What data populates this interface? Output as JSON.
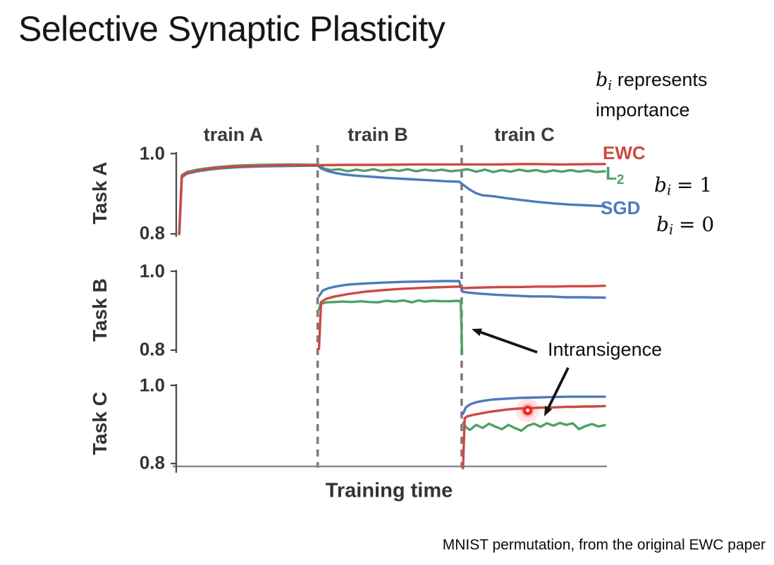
{
  "slide": {
    "title": "Selective Synaptic Plasticity",
    "caption": "MNIST permutation, from the original EWC paper"
  },
  "notes": {
    "importance": {
      "var": "b",
      "sub": "i",
      "rest": "represents",
      "line2": "importance"
    },
    "eq1": {
      "var": "b",
      "sub": "i",
      "rhs": "= 1"
    },
    "eq2": {
      "var": "b",
      "sub": "i",
      "rhs": "= 0"
    }
  },
  "chart_data": {
    "type": "line",
    "xlabel": "Training time",
    "x_domain": [
      0,
      100
    ],
    "ylim": [
      0.8,
      1.0
    ],
    "ytick_labels": [
      "1.0",
      "0.8"
    ],
    "grid": false,
    "phase_labels": [
      "train A",
      "train B",
      "train C"
    ],
    "phase_boundaries": [
      33,
      66.6
    ],
    "annotation_label": "Intransigence",
    "legend": [
      {
        "label": "EWC",
        "sub": "",
        "color": "#cb4a42"
      },
      {
        "label": "L",
        "sub": "2",
        "color": "#4ca264"
      },
      {
        "label": "SGD",
        "sub": "",
        "color": "#4e79be"
      }
    ],
    "highlight_dot": {
      "subplot": "Task C",
      "x": 82,
      "y": 0.936,
      "color": "#f3291c"
    },
    "subplots": [
      {
        "label": "Task A",
        "series": [
          {
            "name": "EWC",
            "color": "#cb4a42",
            "points": [
              [
                0.7,
                0.8
              ],
              [
                1.3,
                0.944
              ],
              [
                2.5,
                0.952
              ],
              [
                5,
                0.958
              ],
              [
                9,
                0.964
              ],
              [
                14,
                0.968
              ],
              [
                20,
                0.97
              ],
              [
                26,
                0.971
              ],
              [
                33,
                0.971
              ],
              [
                40,
                0.972
              ],
              [
                48,
                0.972
              ],
              [
                56,
                0.973
              ],
              [
                66,
                0.973
              ],
              [
                74,
                0.973
              ],
              [
                82,
                0.974
              ],
              [
                90,
                0.973
              ],
              [
                100,
                0.974
              ]
            ]
          },
          {
            "name": "L2",
            "color": "#4ca264",
            "points": [
              [
                0.7,
                0.8
              ],
              [
                1.3,
                0.946
              ],
              [
                2.5,
                0.954
              ],
              [
                5,
                0.96
              ],
              [
                9,
                0.966
              ],
              [
                14,
                0.97
              ],
              [
                20,
                0.972
              ],
              [
                26,
                0.973
              ],
              [
                33,
                0.972
              ],
              [
                34.5,
                0.963
              ],
              [
                36,
                0.959
              ],
              [
                38,
                0.961
              ],
              [
                40,
                0.956
              ],
              [
                42,
                0.96
              ],
              [
                44,
                0.957
              ],
              [
                46,
                0.961
              ],
              [
                48,
                0.956
              ],
              [
                50,
                0.96
              ],
              [
                52,
                0.957
              ],
              [
                54,
                0.961
              ],
              [
                56,
                0.956
              ],
              [
                58,
                0.96
              ],
              [
                60,
                0.957
              ],
              [
                62,
                0.96
              ],
              [
                64,
                0.956
              ],
              [
                66,
                0.958
              ],
              [
                68,
                0.961
              ],
              [
                70,
                0.955
              ],
              [
                72,
                0.96
              ],
              [
                74,
                0.954
              ],
              [
                76,
                0.959
              ],
              [
                78,
                0.955
              ],
              [
                80,
                0.96
              ],
              [
                82,
                0.956
              ],
              [
                84,
                0.959
              ],
              [
                86,
                0.954
              ],
              [
                88,
                0.958
              ],
              [
                90,
                0.955
              ],
              [
                92,
                0.959
              ],
              [
                94,
                0.955
              ],
              [
                96,
                0.958
              ],
              [
                98,
                0.954
              ],
              [
                100,
                0.956
              ]
            ]
          },
          {
            "name": "SGD",
            "color": "#4e79be",
            "points": [
              [
                0.7,
                0.8
              ],
              [
                1.3,
                0.941
              ],
              [
                2.5,
                0.95
              ],
              [
                5,
                0.956
              ],
              [
                9,
                0.962
              ],
              [
                14,
                0.966
              ],
              [
                20,
                0.968
              ],
              [
                26,
                0.969
              ],
              [
                33,
                0.97
              ],
              [
                34,
                0.962
              ],
              [
                35.5,
                0.956
              ],
              [
                37,
                0.952
              ],
              [
                39,
                0.948
              ],
              [
                42,
                0.945
              ],
              [
                46,
                0.942
              ],
              [
                50,
                0.939
              ],
              [
                55,
                0.936
              ],
              [
                60,
                0.933
              ],
              [
                63,
                0.931
              ],
              [
                66,
                0.93
              ],
              [
                67,
                0.922
              ],
              [
                68.5,
                0.91
              ],
              [
                70,
                0.901
              ],
              [
                71.5,
                0.896
              ],
              [
                73,
                0.895
              ],
              [
                74.5,
                0.893
              ],
              [
                77,
                0.889
              ],
              [
                80,
                0.885
              ],
              [
                84,
                0.88
              ],
              [
                88,
                0.876
              ],
              [
                92,
                0.873
              ],
              [
                96,
                0.871
              ],
              [
                100,
                0.869
              ]
            ]
          }
        ]
      },
      {
        "label": "Task B",
        "series": [
          {
            "name": "EWC",
            "color": "#cb4a42",
            "points": [
              [
                33.3,
                0.803
              ],
              [
                33.8,
                0.922
              ],
              [
                35,
                0.93
              ],
              [
                37,
                0.936
              ],
              [
                40,
                0.942
              ],
              [
                44,
                0.948
              ],
              [
                48,
                0.952
              ],
              [
                52,
                0.955
              ],
              [
                56,
                0.957
              ],
              [
                60,
                0.959
              ],
              [
                63,
                0.96
              ],
              [
                66,
                0.961
              ],
              [
                67,
                0.957
              ],
              [
                69,
                0.958
              ],
              [
                72,
                0.959
              ],
              [
                76,
                0.96
              ],
              [
                80,
                0.96
              ],
              [
                84,
                0.961
              ],
              [
                88,
                0.961
              ],
              [
                92,
                0.962
              ],
              [
                96,
                0.962
              ],
              [
                100,
                0.963
              ]
            ]
          },
          {
            "name": "L2",
            "color": "#4ca264",
            "points": [
              [
                33.3,
                0.903
              ],
              [
                33.7,
                0.917
              ],
              [
                35,
                0.921
              ],
              [
                37,
                0.922
              ],
              [
                39,
                0.923
              ],
              [
                41,
                0.922
              ],
              [
                43,
                0.924
              ],
              [
                45,
                0.922
              ],
              [
                47,
                0.921
              ],
              [
                49,
                0.925
              ],
              [
                51,
                0.923
              ],
              [
                53,
                0.926
              ],
              [
                55,
                0.921
              ],
              [
                56.5,
                0.926
              ],
              [
                58,
                0.923
              ],
              [
                60,
                0.925
              ],
              [
                62,
                0.924
              ],
              [
                64,
                0.924
              ],
              [
                65.5,
                0.925
              ],
              [
                66.4,
                0.924
              ],
              [
                66.7,
                0.79
              ]
            ]
          },
          {
            "name": "SGD",
            "color": "#4e79be",
            "points": [
              [
                33.3,
                0.937
              ],
              [
                34.2,
                0.951
              ],
              [
                35.5,
                0.957
              ],
              [
                37.5,
                0.962
              ],
              [
                40,
                0.966
              ],
              [
                44,
                0.969
              ],
              [
                48,
                0.971
              ],
              [
                53,
                0.973
              ],
              [
                58,
                0.974
              ],
              [
                62,
                0.975
              ],
              [
                66,
                0.975
              ],
              [
                66.8,
                0.948
              ],
              [
                68,
                0.946
              ],
              [
                71,
                0.943
              ],
              [
                75,
                0.94
              ],
              [
                79,
                0.938
              ],
              [
                83,
                0.936
              ],
              [
                87,
                0.936
              ],
              [
                91,
                0.934
              ],
              [
                95,
                0.934
              ],
              [
                100,
                0.933
              ]
            ]
          }
        ]
      },
      {
        "label": "Task C",
        "series": [
          {
            "name": "EWC",
            "color": "#cb4a42",
            "points": [
              [
                66.9,
                0.788
              ],
              [
                67.3,
                0.916
              ],
              [
                68,
                0.921
              ],
              [
                69.5,
                0.925
              ],
              [
                71,
                0.928
              ],
              [
                73,
                0.932
              ],
              [
                75,
                0.935
              ],
              [
                77,
                0.938
              ],
              [
                79,
                0.94
              ],
              [
                81,
                0.941
              ],
              [
                83,
                0.942
              ],
              [
                85,
                0.943
              ],
              [
                87,
                0.943
              ],
              [
                89,
                0.944
              ],
              [
                91,
                0.945
              ],
              [
                93,
                0.945
              ],
              [
                95,
                0.946
              ],
              [
                97,
                0.946
              ],
              [
                100,
                0.947
              ]
            ]
          },
          {
            "name": "L2",
            "color": "#4ca264",
            "points": [
              [
                66.9,
                0.904
              ],
              [
                67.6,
                0.893
              ],
              [
                68.5,
                0.886
              ],
              [
                70,
                0.899
              ],
              [
                71.5,
                0.891
              ],
              [
                73,
                0.902
              ],
              [
                74.5,
                0.894
              ],
              [
                76,
                0.888
              ],
              [
                77.5,
                0.899
              ],
              [
                79,
                0.891
              ],
              [
                80.5,
                0.884
              ],
              [
                82,
                0.897
              ],
              [
                83.5,
                0.902
              ],
              [
                85,
                0.894
              ],
              [
                86.5,
                0.903
              ],
              [
                88,
                0.897
              ],
              [
                89.5,
                0.904
              ],
              [
                91,
                0.899
              ],
              [
                92.5,
                0.903
              ],
              [
                94,
                0.888
              ],
              [
                95.5,
                0.896
              ],
              [
                97,
                0.901
              ],
              [
                98.5,
                0.895
              ],
              [
                100,
                0.898
              ]
            ]
          },
          {
            "name": "SGD",
            "color": "#4e79be",
            "points": [
              [
                66.9,
                0.927
              ],
              [
                67.6,
                0.944
              ],
              [
                68.5,
                0.951
              ],
              [
                70,
                0.957
              ],
              [
                72,
                0.961
              ],
              [
                74,
                0.964
              ],
              [
                77,
                0.966
              ],
              [
                80,
                0.968
              ],
              [
                84,
                0.969
              ],
              [
                88,
                0.97
              ],
              [
                92,
                0.971
              ],
              [
                96,
                0.971
              ],
              [
                100,
                0.971
              ]
            ]
          }
        ]
      }
    ]
  }
}
